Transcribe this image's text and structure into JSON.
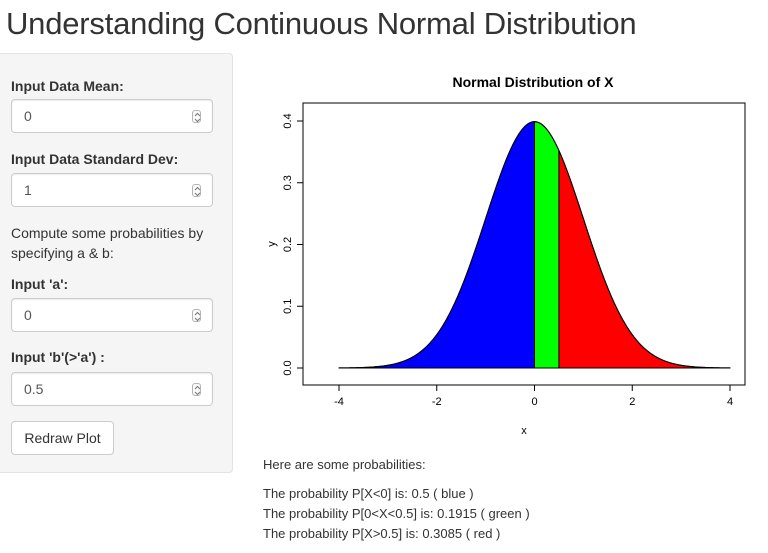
{
  "page": {
    "title": "Understanding Continuous Normal Distribution"
  },
  "sidebar": {
    "mean": {
      "label": "Input Data Mean:",
      "value": "0"
    },
    "sd": {
      "label": "Input Data Standard Dev:",
      "value": "1"
    },
    "help_text": "Compute some probabilities by specifying a & b:",
    "a": {
      "label": "Input 'a':",
      "value": "0"
    },
    "b": {
      "label": "Input 'b'(>'a') :",
      "value": "0.5"
    },
    "redraw_label": "Redraw Plot"
  },
  "chart_data": {
    "type": "area",
    "title": "Normal Distribution of X",
    "xlabel": "x",
    "ylabel": "y",
    "xlim": [
      -4,
      4
    ],
    "ylim": [
      0,
      0.4
    ],
    "x_ticks": [
      "-4",
      "-2",
      "0",
      "2",
      "4"
    ],
    "y_ticks": [
      "0.0",
      "0.1",
      "0.2",
      "0.3",
      "0.4"
    ],
    "mean": 0,
    "sd": 1,
    "a": 0,
    "b": 0.5,
    "regions": [
      {
        "from": -4,
        "to": 0,
        "color": "#0000ff"
      },
      {
        "from": 0,
        "to": 0.5,
        "color": "#00ff00"
      },
      {
        "from": 0.5,
        "to": 4,
        "color": "#ff0000"
      }
    ]
  },
  "results": {
    "heading": "Here are some probabilities:",
    "lines": [
      "The probability P[X<0] is: 0.5 ( blue )",
      "The probability P[0<X<0.5] is: 0.1915 ( green )",
      "The probability P[X>0.5] is: 0.3085 ( red )"
    ]
  }
}
